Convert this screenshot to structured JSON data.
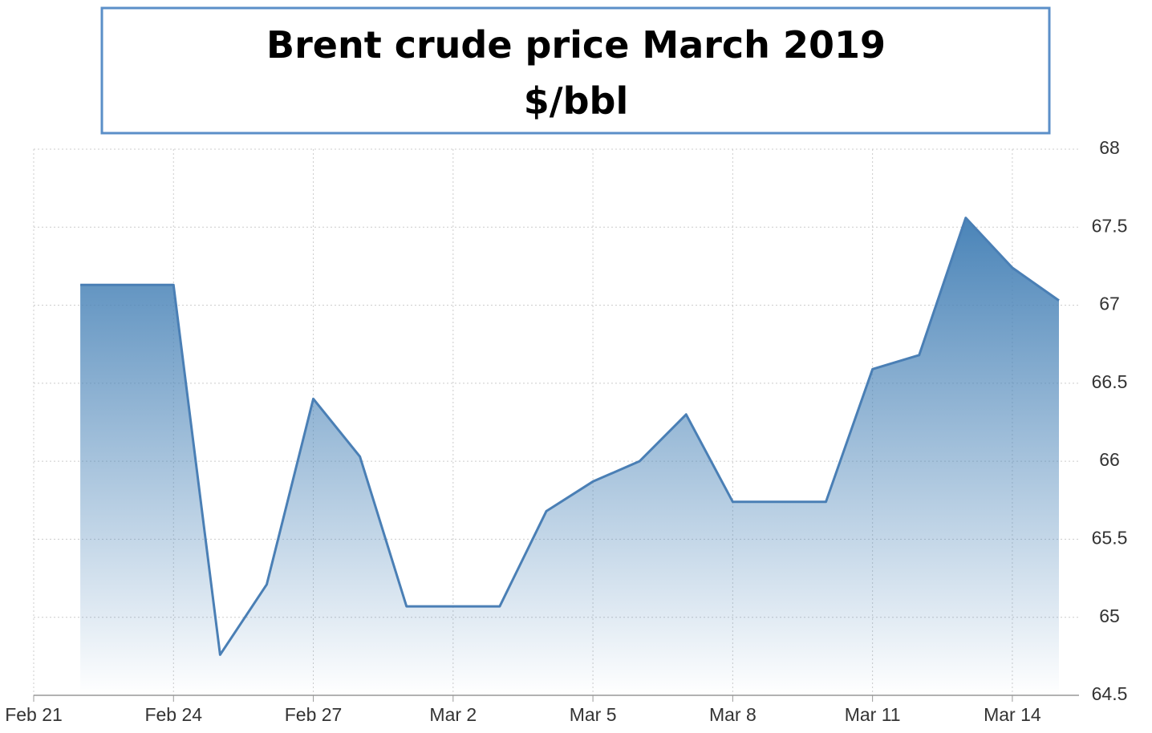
{
  "chart_data": {
    "type": "area",
    "title": "Brent crude price March 2019",
    "subtitle": "$/bbl",
    "x": [
      "Feb 22",
      "Feb 24",
      "Feb 25",
      "Feb 26",
      "Feb 27",
      "Feb 28",
      "Mar 1",
      "Mar 3",
      "Mar 4",
      "Mar 5",
      "Mar 6",
      "Mar 7",
      "Mar 8",
      "Mar 10",
      "Mar 11",
      "Mar 12",
      "Mar 13",
      "Mar 14",
      "Mar 15"
    ],
    "series": [
      {
        "name": "Brent",
        "color": "#4a7fb5",
        "values": [
          67.13,
          67.13,
          64.76,
          65.21,
          66.4,
          66.03,
          65.07,
          65.07,
          65.68,
          65.87,
          66.0,
          66.3,
          65.74,
          65.74,
          66.59,
          66.68,
          67.56,
          67.24,
          67.03
        ]
      }
    ],
    "xlim": [
      "Feb 21",
      "Mar 15"
    ],
    "xticks": [
      "Feb 21",
      "Feb 24",
      "Feb 27",
      "Mar 2",
      "Mar 5",
      "Mar 8",
      "Mar 11",
      "Mar 14"
    ],
    "ylim": [
      64.5,
      68
    ],
    "yticks": [
      64.5,
      65,
      65.5,
      66,
      66.5,
      67,
      67.5,
      68
    ],
    "grid": true
  }
}
